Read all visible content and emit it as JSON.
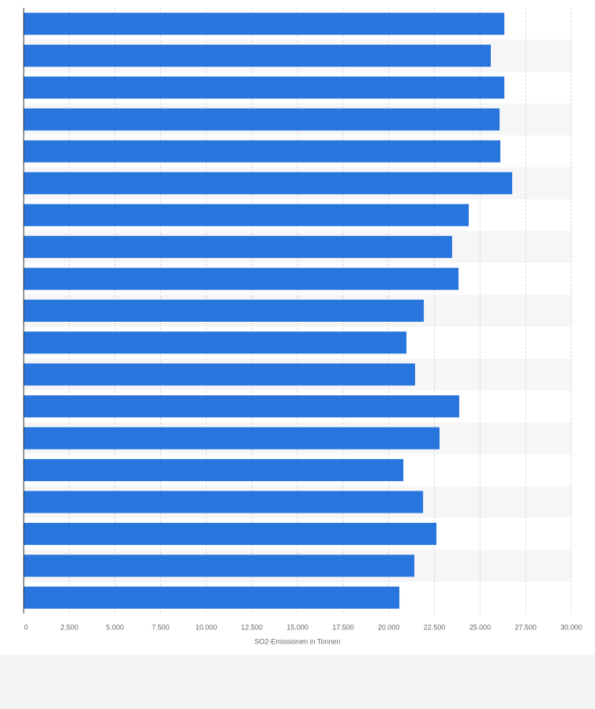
{
  "chart_data": {
    "type": "hbar",
    "x_label": "SO2-Emissionen in Tonnen",
    "categories": [
      null,
      null,
      null,
      null,
      null,
      null,
      null,
      null,
      null,
      null,
      null,
      null,
      null,
      null,
      null,
      null,
      null,
      null,
      null
    ],
    "values": [
      26330,
      25590,
      26330,
      26070,
      26110,
      26760,
      24380,
      23470,
      23820,
      21920,
      20970,
      21440,
      23860,
      22780,
      20800,
      21880,
      22610,
      21400,
      20580
    ],
    "color": "#2876dd",
    "xlim": [
      0,
      30000
    ],
    "xticks": [
      0,
      {
        "value": 2500,
        "label": "2.500"
      },
      {
        "value": 5000,
        "label": "5.000"
      },
      {
        "value": 7500,
        "label": "7.500"
      },
      {
        "value": 10000,
        "label": "10.000"
      },
      {
        "value": 12500,
        "label": "12.500"
      },
      {
        "value": 15000,
        "label": "15.000"
      },
      {
        "value": 17500,
        "label": "17.500"
      },
      {
        "value": 20000,
        "label": "20.000"
      },
      {
        "value": 22500,
        "label": "22.500"
      },
      {
        "value": 25000,
        "label": "25.000"
      },
      {
        "value": 27500,
        "label": "27.500"
      },
      {
        "value": 30000,
        "label": "30.000"
      }
    ],
    "grid": true
  }
}
